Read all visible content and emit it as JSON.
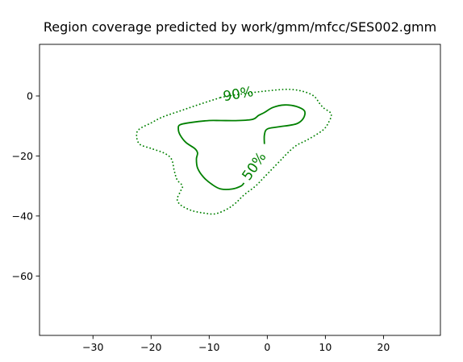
{
  "chart_data": {
    "type": "contour",
    "title": "Region coverage predicted by work/gmm/mfcc/SES002.gmm",
    "xlabel": "",
    "ylabel": "",
    "xlim": [
      -39.2,
      29.8
    ],
    "ylim": [
      -79.8,
      17.2
    ],
    "grid": false,
    "x_ticks": [
      {
        "value": -30,
        "label": "−30"
      },
      {
        "value": -20,
        "label": "−20"
      },
      {
        "value": -10,
        "label": "−10"
      },
      {
        "value": 0,
        "label": "0"
      },
      {
        "value": 10,
        "label": "10"
      },
      {
        "value": 20,
        "label": "20"
      }
    ],
    "y_ticks": [
      {
        "value": 0,
        "label": "0"
      },
      {
        "value": -20,
        "label": "−20"
      },
      {
        "value": -40,
        "label": "−40"
      },
      {
        "value": -60,
        "label": "−60"
      }
    ],
    "color": "#008000",
    "series": [
      {
        "label": "90%",
        "style": "dotted",
        "label_at": {
          "x": -5,
          "y": 0.5,
          "angle": -10
        },
        "points": [
          [
            -8,
            -0.5
          ],
          [
            -5,
            0.5
          ],
          [
            0,
            1.7
          ],
          [
            3.5,
            2.2
          ],
          [
            6,
            1.6
          ],
          [
            8,
            0
          ],
          [
            9,
            -2.5
          ],
          [
            9.7,
            -4
          ],
          [
            11,
            -6
          ],
          [
            10.5,
            -9
          ],
          [
            9.5,
            -11.5
          ],
          [
            7,
            -14.5
          ],
          [
            5,
            -16.5
          ],
          [
            3.5,
            -19
          ],
          [
            2.5,
            -21
          ],
          [
            1,
            -24
          ],
          [
            -0.5,
            -27
          ],
          [
            -2,
            -30
          ],
          [
            -4,
            -33
          ],
          [
            -5.5,
            -35.8
          ],
          [
            -7,
            -37.8
          ],
          [
            -9,
            -39.3
          ],
          [
            -11,
            -39
          ],
          [
            -13,
            -38.2
          ],
          [
            -14.8,
            -36.5
          ],
          [
            -15.5,
            -34.5
          ],
          [
            -15,
            -32
          ],
          [
            -14.6,
            -30
          ],
          [
            -15.5,
            -28
          ],
          [
            -16,
            -25
          ],
          [
            -16.5,
            -21
          ],
          [
            -17.8,
            -19
          ],
          [
            -20,
            -17.5
          ],
          [
            -22,
            -16
          ],
          [
            -22.5,
            -13
          ],
          [
            -22,
            -11
          ],
          [
            -20,
            -9
          ],
          [
            -18,
            -7
          ],
          [
            -15,
            -5
          ],
          [
            -12,
            -3
          ],
          [
            -8,
            -0.5
          ]
        ]
      },
      {
        "label": "50%",
        "style": "solid",
        "label_at": {
          "x": -2.2,
          "y": -23.5,
          "angle": -55
        },
        "points": [
          [
            -0.5,
            -16
          ],
          [
            -0.5,
            -13
          ],
          [
            0,
            -11
          ],
          [
            2,
            -10.3
          ],
          [
            5,
            -9.3
          ],
          [
            6.2,
            -7.5
          ],
          [
            6.4,
            -5
          ],
          [
            5,
            -3.5
          ],
          [
            3,
            -3
          ],
          [
            1,
            -3.8
          ],
          [
            -0.5,
            -5.5
          ],
          [
            -1.5,
            -6.5
          ],
          [
            -2.5,
            -7.8
          ],
          [
            -5,
            -8.2
          ],
          [
            -8,
            -8.2
          ],
          [
            -10,
            -8.2
          ],
          [
            -13,
            -8.8
          ],
          [
            -15,
            -9.6
          ],
          [
            -15.3,
            -11
          ],
          [
            -15,
            -13
          ],
          [
            -14,
            -15.5
          ],
          [
            -12.5,
            -17.5
          ],
          [
            -12,
            -19
          ],
          [
            -12.2,
            -21
          ],
          [
            -12,
            -24
          ],
          [
            -11,
            -27
          ],
          [
            -9.5,
            -29.5
          ],
          [
            -8,
            -31
          ],
          [
            -6,
            -31
          ],
          [
            -4.5,
            -30
          ],
          [
            -4,
            -29
          ]
        ]
      }
    ]
  }
}
